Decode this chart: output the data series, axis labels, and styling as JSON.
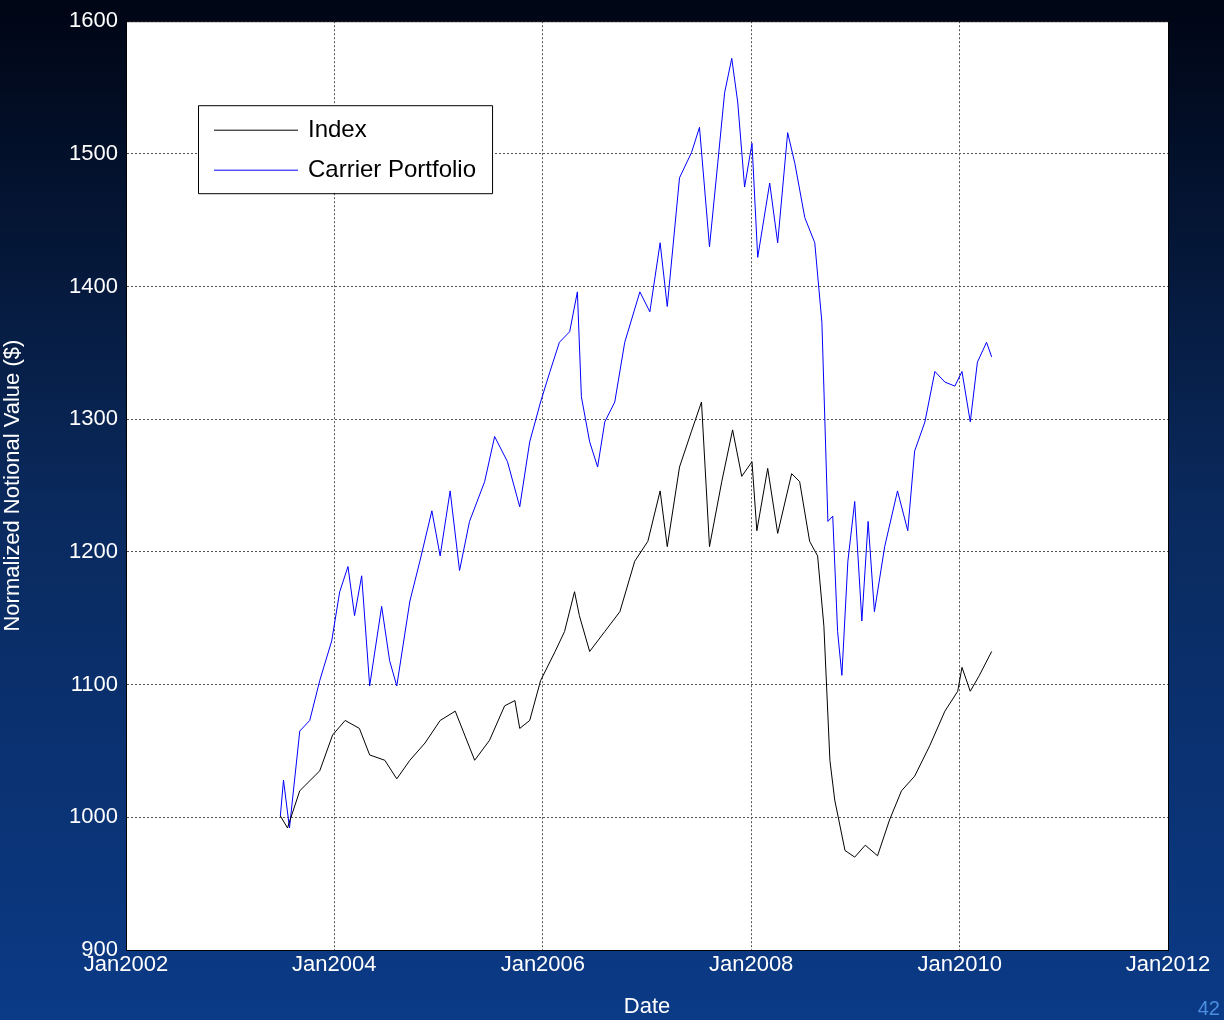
{
  "chart_data": {
    "type": "line",
    "xlabel": "Date",
    "ylabel": "Normalized Notional Value ($)",
    "xlim": [
      "2002-01",
      "2012-01"
    ],
    "xticks": [
      {
        "value": "2002-01",
        "label": "Jan2002"
      },
      {
        "value": "2004-01",
        "label": "Jan2004"
      },
      {
        "value": "2006-01",
        "label": "Jan2006"
      },
      {
        "value": "2008-01",
        "label": "Jan2008"
      },
      {
        "value": "2010-01",
        "label": "Jan2010"
      },
      {
        "value": "2012-01",
        "label": "Jan2012"
      }
    ],
    "ylim": [
      900,
      1600
    ],
    "yticks": [
      900,
      1000,
      1100,
      1200,
      1300,
      1400,
      1500,
      1600
    ],
    "grid": true,
    "legend": "top left",
    "marker": "none",
    "line_style": "solid",
    "annotations": [
      "42"
    ],
    "series": [
      {
        "name": "Index",
        "color": "#000000",
        "x": [
          "2003-06-26",
          "2003-07-21",
          "2003-09-02",
          "2003-11-11",
          "2003-12-26",
          "2004-02-08",
          "2004-03-29",
          "2004-05-04",
          "2004-06-26",
          "2004-08-07",
          "2004-09-22",
          "2004-11-14",
          "2005-01-06",
          "2005-02-28",
          "2005-04-02",
          "2005-05-07",
          "2005-06-28",
          "2005-08-20",
          "2005-09-25",
          "2005-10-12",
          "2005-11-16",
          "2005-12-24",
          "2006-02-13",
          "2006-03-18",
          "2006-04-22",
          "2006-05-09",
          "2006-06-14",
          "2006-08-06",
          "2006-09-28",
          "2006-11-19",
          "2007-01-04",
          "2007-02-16",
          "2007-03-13",
          "2007-04-25",
          "2007-06-06",
          "2007-07-11",
          "2007-08-08",
          "2007-09-20",
          "2007-10-28",
          "2007-11-29",
          "2008-01-04",
          "2008-01-21",
          "2008-02-28",
          "2008-04-03",
          "2008-05-22",
          "2008-06-19",
          "2008-07-24",
          "2008-08-21",
          "2008-09-12",
          "2008-10-03",
          "2008-10-20",
          "2008-11-25",
          "2008-12-29",
          "2009-02-04",
          "2009-03-19",
          "2009-04-30",
          "2009-06-11",
          "2009-07-27",
          "2009-09-18",
          "2009-11-10",
          "2009-12-25",
          "2010-01-09",
          "2010-02-07",
          "2010-03-11",
          "2010-04-23"
        ],
        "values": [
          1001,
          992,
          1020,
          1035,
          1062,
          1073,
          1067,
          1047,
          1043,
          1029,
          1043,
          1056,
          1073,
          1080,
          1062,
          1043,
          1058,
          1084,
          1088,
          1067,
          1073,
          1103,
          1125,
          1140,
          1170,
          1152,
          1125,
          1140,
          1155,
          1193,
          1208,
          1246,
          1204,
          1264,
          1291,
          1313,
          1204,
          1253,
          1292,
          1257,
          1268,
          1216,
          1263,
          1214,
          1259,
          1253,
          1208,
          1197,
          1144,
          1043,
          1013,
          975,
          970,
          979,
          971,
          998,
          1020,
          1031,
          1054,
          1080,
          1095,
          1113,
          1095,
          1107,
          1125
        ]
      },
      {
        "name": "Carrier Portfolio",
        "color": "#0000ff",
        "x": [
          "2003-06-26",
          "2003-07-07",
          "2003-07-28",
          "2003-09-02",
          "2003-10-07",
          "2003-11-11",
          "2003-12-23",
          "2004-01-20",
          "2004-02-18",
          "2004-03-12",
          "2004-04-06",
          "2004-05-04",
          "2004-06-15",
          "2004-07-13",
          "2004-08-07",
          "2004-09-22",
          "2004-10-27",
          "2004-12-08",
          "2005-01-06",
          "2005-02-10",
          "2005-03-15",
          "2005-04-19",
          "2005-06-11",
          "2005-07-16",
          "2005-08-30",
          "2005-10-12",
          "2005-11-16",
          "2005-12-24",
          "2006-01-26",
          "2006-02-28",
          "2006-04-05",
          "2006-05-02",
          "2006-05-16",
          "2006-06-14",
          "2006-07-12",
          "2006-08-06",
          "2006-09-10",
          "2006-10-15",
          "2006-12-07",
          "2007-01-11",
          "2007-02-16",
          "2007-03-13",
          "2007-04-25",
          "2007-06-06",
          "2007-07-04",
          "2007-08-08",
          "2007-09-06",
          "2007-09-30",
          "2007-10-25",
          "2007-11-15",
          "2007-12-09",
          "2008-01-04",
          "2008-01-24",
          "2008-03-06",
          "2008-04-03",
          "2008-05-08",
          "2008-06-02",
          "2008-07-07",
          "2008-08-11",
          "2008-09-05",
          "2008-09-26",
          "2008-10-13",
          "2008-10-30",
          "2008-11-14",
          "2008-12-05",
          "2008-12-29",
          "2009-01-23",
          "2009-02-14",
          "2009-03-08",
          "2009-04-13",
          "2009-05-28",
          "2009-07-03",
          "2009-07-27",
          "2009-09-01",
          "2009-10-06",
          "2009-11-10",
          "2009-12-15",
          "2010-01-09",
          "2010-02-07",
          "2010-03-04",
          "2010-04-05",
          "2010-04-23"
        ],
        "values": [
          1001,
          1028,
          992,
          1065,
          1073,
          1103,
          1133,
          1170,
          1189,
          1152,
          1182,
          1099,
          1159,
          1118,
          1099,
          1163,
          1193,
          1231,
          1197,
          1246,
          1186,
          1223,
          1253,
          1287,
          1268,
          1234,
          1283,
          1313,
          1336,
          1358,
          1366,
          1396,
          1317,
          1283,
          1264,
          1298,
          1313,
          1358,
          1396,
          1381,
          1433,
          1385,
          1482,
          1501,
          1520,
          1430,
          1493,
          1546,
          1572,
          1539,
          1475,
          1508,
          1422,
          1478,
          1433,
          1516,
          1493,
          1452,
          1433,
          1373,
          1223,
          1227,
          1140,
          1107,
          1193,
          1238,
          1148,
          1223,
          1155,
          1204,
          1246,
          1216,
          1276,
          1298,
          1336,
          1328,
          1325,
          1336,
          1298,
          1343,
          1358,
          1347
        ]
      }
    ]
  }
}
